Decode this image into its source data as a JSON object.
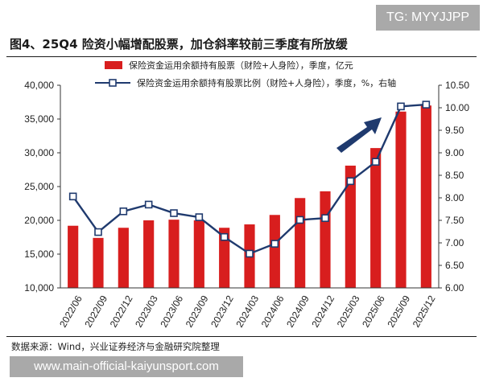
{
  "header": {
    "title": "图4、25Q4 险资小幅增配股票，加仓斜率较前三季度有所放缓",
    "watermark": "TG: MYYJJPP"
  },
  "footer": {
    "source": "数据来源：Wind，兴业证券经济与金融研究院整理",
    "watermark": "www.main-official-kaiyunsport.com"
  },
  "chart_data": {
    "type": "bar",
    "categories": [
      "2022/06",
      "2022/09",
      "2022/12",
      "2023/03",
      "2023/06",
      "2023/09",
      "2023/12",
      "2024/03",
      "2024/06",
      "2024/09",
      "2024/12",
      "2025/03",
      "2025/06",
      "2025/09",
      "2025/12"
    ],
    "series": [
      {
        "name": "保险资金运用余额持有股票（财险+人身险），季度，亿元",
        "type": "bar",
        "axis": "left",
        "color": "#d81e1e",
        "values": [
          19200,
          17400,
          18900,
          20000,
          20100,
          20000,
          18900,
          19400,
          20800,
          23300,
          24300,
          28100,
          30700,
          36100,
          37000
        ]
      },
      {
        "name": "保险资金运用余额持有股票比例（财险+人身险），季度，%，右轴",
        "type": "line",
        "axis": "right",
        "color": "#1f3a6e",
        "values": [
          8.03,
          7.24,
          7.7,
          7.85,
          7.66,
          7.57,
          7.13,
          6.76,
          6.98,
          7.51,
          7.55,
          8.37,
          8.8,
          10.03,
          10.07
        ]
      }
    ],
    "y_left": {
      "min": 10000,
      "max": 40000,
      "ticks": [
        "10,000",
        "15,000",
        "20,000",
        "25,000",
        "30,000",
        "35,000",
        "40,000"
      ]
    },
    "y_right": {
      "min": 6.0,
      "max": 10.5,
      "ticks": [
        "6.00",
        "6.50",
        "7.00",
        "7.50",
        "8.00",
        "8.50",
        "9.00",
        "9.50",
        "10.00",
        "10.50"
      ]
    },
    "annotation": {
      "type": "arrow",
      "color": "#1f3a6e",
      "direction": "up-right"
    },
    "legend_position": "top",
    "grid": false
  }
}
